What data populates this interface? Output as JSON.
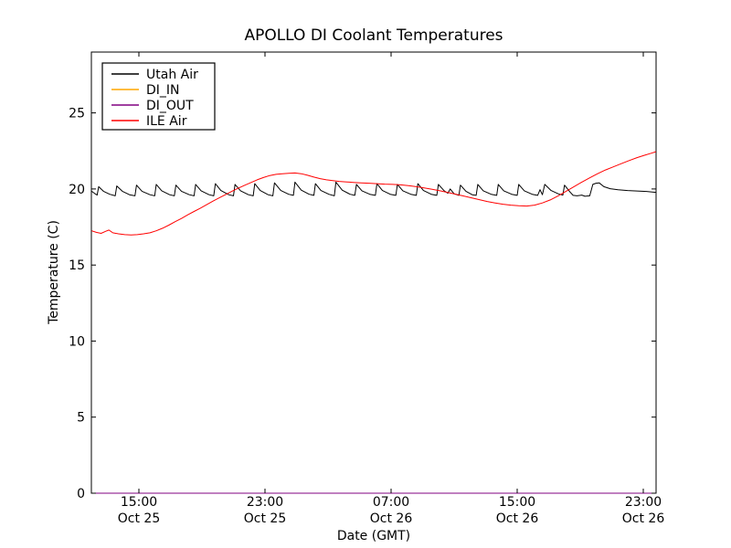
{
  "chart_data": {
    "type": "line",
    "title": "APOLLO DI Coolant Temperatures",
    "xlabel": "Date (GMT)",
    "ylabel": "Temperature (C)",
    "grid": false,
    "ylim": [
      0,
      29
    ],
    "yticks": [
      0,
      5,
      10,
      15,
      20,
      25
    ],
    "x_unit": "hours since Oct 25 12:00 GMT",
    "xlim_hours": [
      0,
      35.8
    ],
    "xticks": [
      {
        "t": 3,
        "time": "15:00",
        "date": "Oct 25"
      },
      {
        "t": 11,
        "time": "23:00",
        "date": "Oct 25"
      },
      {
        "t": 19,
        "time": "07:00",
        "date": "Oct 26"
      },
      {
        "t": 27,
        "time": "15:00",
        "date": "Oct 26"
      },
      {
        "t": 35,
        "time": "23:00",
        "date": "Oct 26"
      }
    ],
    "legend_position": "upper left",
    "series": [
      {
        "name": "Utah Air",
        "color": "#000000",
        "points": [
          [
            0,
            19.85
          ],
          [
            0.2,
            19.7
          ],
          [
            0.35,
            19.6
          ],
          [
            0.45,
            20.15
          ],
          [
            0.75,
            19.85
          ],
          [
            1.15,
            19.65
          ],
          [
            1.5,
            19.55
          ],
          [
            1.6,
            20.2
          ],
          [
            1.95,
            19.85
          ],
          [
            2.4,
            19.62
          ],
          [
            2.75,
            19.55
          ],
          [
            2.85,
            20.25
          ],
          [
            3.2,
            19.85
          ],
          [
            3.7,
            19.62
          ],
          [
            4.0,
            19.55
          ],
          [
            4.1,
            20.3
          ],
          [
            4.45,
            19.88
          ],
          [
            4.95,
            19.62
          ],
          [
            5.25,
            19.55
          ],
          [
            5.35,
            20.25
          ],
          [
            5.7,
            19.85
          ],
          [
            6.2,
            19.62
          ],
          [
            6.5,
            19.55
          ],
          [
            6.6,
            20.3
          ],
          [
            6.95,
            19.88
          ],
          [
            7.45,
            19.62
          ],
          [
            7.75,
            19.55
          ],
          [
            7.85,
            20.35
          ],
          [
            8.2,
            19.9
          ],
          [
            8.7,
            19.62
          ],
          [
            9.0,
            19.55
          ],
          [
            9.1,
            20.3
          ],
          [
            9.45,
            19.88
          ],
          [
            9.95,
            19.62
          ],
          [
            10.25,
            19.55
          ],
          [
            10.35,
            20.35
          ],
          [
            10.7,
            19.9
          ],
          [
            11.2,
            19.62
          ],
          [
            11.5,
            19.55
          ],
          [
            11.6,
            20.4
          ],
          [
            12.0,
            19.9
          ],
          [
            12.5,
            19.65
          ],
          [
            12.8,
            19.58
          ],
          [
            12.9,
            20.45
          ],
          [
            13.3,
            19.92
          ],
          [
            13.8,
            19.65
          ],
          [
            14.1,
            19.58
          ],
          [
            14.2,
            20.35
          ],
          [
            14.55,
            19.9
          ],
          [
            15.05,
            19.65
          ],
          [
            15.4,
            19.55
          ],
          [
            15.5,
            20.45
          ],
          [
            15.9,
            19.92
          ],
          [
            16.4,
            19.65
          ],
          [
            16.7,
            19.58
          ],
          [
            16.8,
            20.3
          ],
          [
            17.15,
            19.88
          ],
          [
            17.65,
            19.65
          ],
          [
            18.0,
            19.58
          ],
          [
            18.1,
            20.35
          ],
          [
            18.45,
            19.9
          ],
          [
            18.95,
            19.65
          ],
          [
            19.3,
            19.58
          ],
          [
            19.4,
            20.3
          ],
          [
            19.75,
            19.88
          ],
          [
            20.25,
            19.65
          ],
          [
            20.6,
            19.58
          ],
          [
            20.7,
            20.35
          ],
          [
            21.05,
            19.9
          ],
          [
            21.55,
            19.65
          ],
          [
            21.9,
            19.58
          ],
          [
            22.0,
            20.3
          ],
          [
            22.35,
            19.9
          ],
          [
            22.6,
            19.72
          ],
          [
            22.75,
            20.0
          ],
          [
            23.0,
            19.68
          ],
          [
            23.3,
            19.58
          ],
          [
            23.4,
            20.25
          ],
          [
            23.75,
            19.85
          ],
          [
            24.15,
            19.62
          ],
          [
            24.4,
            19.58
          ],
          [
            24.5,
            20.3
          ],
          [
            24.85,
            19.88
          ],
          [
            25.35,
            19.65
          ],
          [
            25.7,
            19.58
          ],
          [
            25.8,
            20.3
          ],
          [
            26.15,
            19.88
          ],
          [
            26.65,
            19.65
          ],
          [
            27.0,
            19.58
          ],
          [
            27.1,
            20.3
          ],
          [
            27.45,
            19.88
          ],
          [
            27.95,
            19.65
          ],
          [
            28.3,
            19.58
          ],
          [
            28.45,
            19.95
          ],
          [
            28.6,
            19.62
          ],
          [
            28.75,
            20.3
          ],
          [
            29.15,
            19.9
          ],
          [
            29.6,
            19.68
          ],
          [
            29.9,
            19.6
          ],
          [
            30.0,
            20.25
          ],
          [
            30.35,
            19.8
          ],
          [
            30.55,
            19.58
          ],
          [
            30.8,
            19.55
          ],
          [
            31.1,
            19.6
          ],
          [
            31.3,
            19.52
          ],
          [
            31.6,
            19.55
          ],
          [
            31.8,
            20.3
          ],
          [
            32.0,
            20.38
          ],
          [
            32.2,
            20.4
          ],
          [
            32.5,
            20.15
          ],
          [
            32.9,
            20.02
          ],
          [
            33.4,
            19.95
          ],
          [
            34.0,
            19.9
          ],
          [
            34.6,
            19.87
          ],
          [
            35.2,
            19.84
          ],
          [
            35.8,
            19.78
          ]
        ]
      },
      {
        "name": "DI_IN",
        "color": "#ffa500",
        "points": [
          [
            0,
            0
          ],
          [
            35.8,
            0
          ]
        ]
      },
      {
        "name": "DI_OUT",
        "color": "#800080",
        "points": [
          [
            0,
            0
          ],
          [
            35.8,
            0
          ]
        ]
      },
      {
        "name": "ILE Air",
        "color": "#ff0000",
        "points": [
          [
            0,
            17.25
          ],
          [
            0.3,
            17.15
          ],
          [
            0.6,
            17.08
          ],
          [
            0.9,
            17.22
          ],
          [
            1.1,
            17.3
          ],
          [
            1.35,
            17.12
          ],
          [
            1.7,
            17.05
          ],
          [
            2.1,
            17.0
          ],
          [
            2.5,
            16.98
          ],
          [
            2.9,
            17.0
          ],
          [
            3.3,
            17.05
          ],
          [
            3.7,
            17.12
          ],
          [
            4.1,
            17.25
          ],
          [
            4.5,
            17.42
          ],
          [
            4.9,
            17.62
          ],
          [
            5.3,
            17.85
          ],
          [
            5.7,
            18.06
          ],
          [
            6.1,
            18.3
          ],
          [
            6.5,
            18.52
          ],
          [
            6.9,
            18.74
          ],
          [
            7.3,
            18.97
          ],
          [
            7.7,
            19.2
          ],
          [
            8.1,
            19.42
          ],
          [
            8.5,
            19.63
          ],
          [
            8.9,
            19.85
          ],
          [
            9.3,
            20.05
          ],
          [
            9.7,
            20.24
          ],
          [
            10.1,
            20.42
          ],
          [
            10.5,
            20.6
          ],
          [
            10.9,
            20.75
          ],
          [
            11.3,
            20.88
          ],
          [
            11.7,
            20.96
          ],
          [
            12.1,
            21.0
          ],
          [
            12.5,
            21.03
          ],
          [
            12.9,
            21.05
          ],
          [
            13.3,
            21.0
          ],
          [
            13.7,
            20.9
          ],
          [
            14.1,
            20.78
          ],
          [
            14.5,
            20.68
          ],
          [
            14.9,
            20.6
          ],
          [
            15.3,
            20.55
          ],
          [
            15.7,
            20.5
          ],
          [
            16.1,
            20.47
          ],
          [
            16.6,
            20.43
          ],
          [
            17.1,
            20.4
          ],
          [
            17.6,
            20.38
          ],
          [
            18.1,
            20.35
          ],
          [
            18.6,
            20.32
          ],
          [
            19.1,
            20.3
          ],
          [
            19.6,
            20.27
          ],
          [
            20.1,
            20.22
          ],
          [
            20.6,
            20.15
          ],
          [
            21.1,
            20.07
          ],
          [
            21.6,
            19.98
          ],
          [
            22.1,
            19.88
          ],
          [
            22.6,
            19.77
          ],
          [
            23.1,
            19.66
          ],
          [
            23.6,
            19.54
          ],
          [
            24.1,
            19.42
          ],
          [
            24.6,
            19.3
          ],
          [
            25.1,
            19.18
          ],
          [
            25.6,
            19.08
          ],
          [
            26.1,
            19.0
          ],
          [
            26.6,
            18.94
          ],
          [
            27.1,
            18.9
          ],
          [
            27.6,
            18.88
          ],
          [
            28.1,
            18.94
          ],
          [
            28.6,
            19.08
          ],
          [
            29.1,
            19.28
          ],
          [
            29.6,
            19.55
          ],
          [
            30.1,
            19.85
          ],
          [
            30.6,
            20.15
          ],
          [
            31.1,
            20.45
          ],
          [
            31.6,
            20.73
          ],
          [
            32.1,
            21.0
          ],
          [
            32.6,
            21.25
          ],
          [
            33.1,
            21.45
          ],
          [
            33.6,
            21.66
          ],
          [
            34.1,
            21.87
          ],
          [
            34.6,
            22.06
          ],
          [
            35.1,
            22.22
          ],
          [
            35.5,
            22.35
          ],
          [
            35.8,
            22.45
          ]
        ]
      }
    ]
  }
}
